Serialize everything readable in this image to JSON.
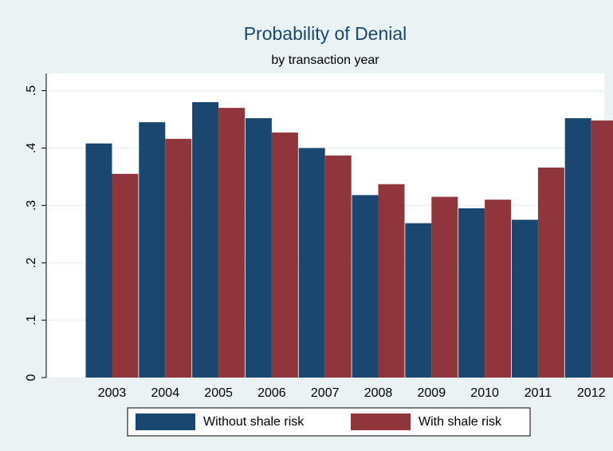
{
  "chart_data": {
    "type": "bar",
    "title": "Probability of Denial",
    "subtitle": "by transaction year",
    "categories": [
      "2003",
      "2004",
      "2005",
      "2006",
      "2007",
      "2008",
      "2009",
      "2010",
      "2011",
      "2012"
    ],
    "series": [
      {
        "name": "Without shale risk",
        "color": "#1a476f",
        "values": [
          0.408,
          0.445,
          0.48,
          0.452,
          0.4,
          0.318,
          0.269,
          0.295,
          0.275,
          0.452
        ]
      },
      {
        "name": "With shale risk",
        "color": "#90353b",
        "values": [
          0.355,
          0.416,
          0.47,
          0.427,
          0.387,
          0.337,
          0.315,
          0.31,
          0.366,
          0.448
        ]
      }
    ],
    "ylim": [
      0,
      0.53
    ],
    "yticks": [
      0,
      {
        "value": 0.1,
        "label": ".1"
      },
      {
        "value": 0.2,
        "label": ".2"
      },
      {
        "value": 0.3,
        "label": ".3"
      },
      {
        "value": 0.4,
        "label": ".4"
      },
      {
        "value": 0.5,
        "label": ".5"
      }
    ],
    "grid": true,
    "legend": "bottom"
  }
}
